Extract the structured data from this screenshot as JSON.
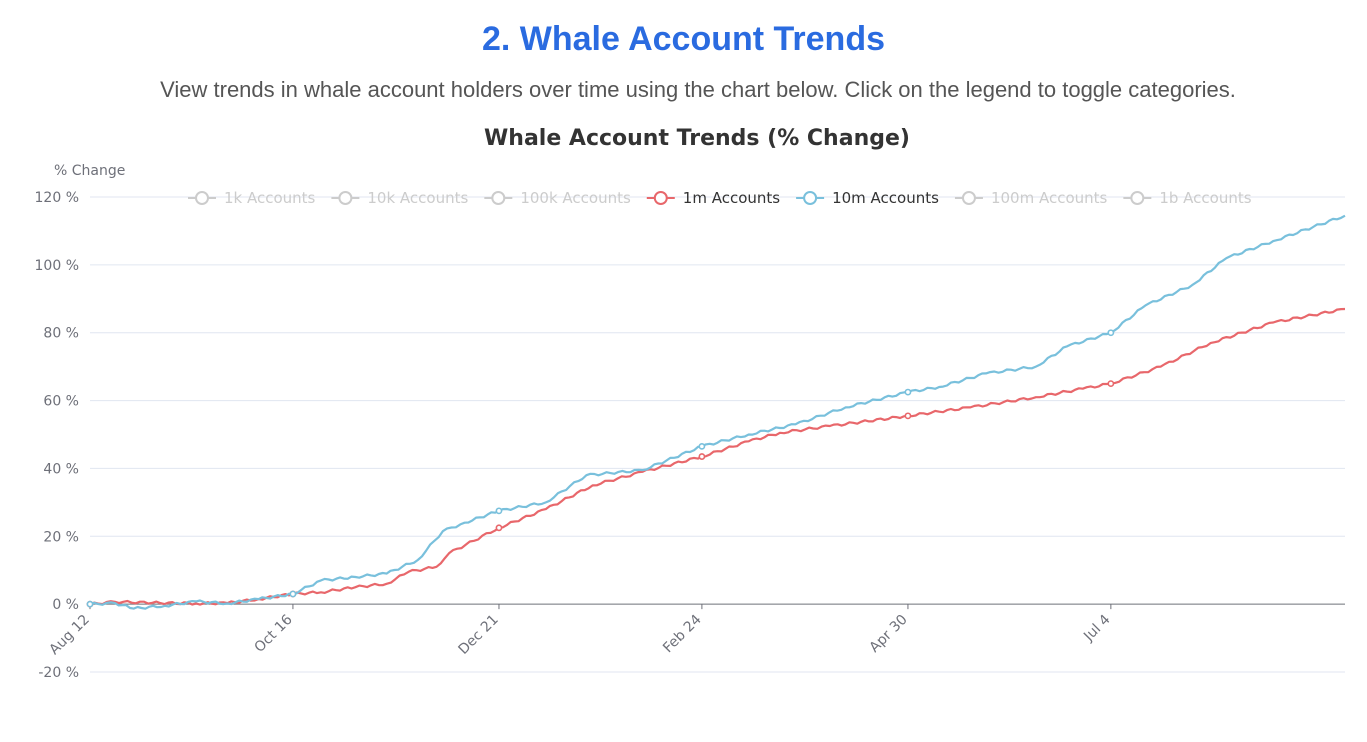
{
  "header": {
    "title": "2. Whale Account Trends",
    "description": "View trends in whale account holders over time using the chart below. Click on the legend to toggle categories."
  },
  "colors": {
    "title": "#2a6be0",
    "series_1m": "#e8676b",
    "series_10m": "#79c0dc",
    "legend_inactive": "#cccccc",
    "grid": "#e0e6f1",
    "axis": "#6e7079"
  },
  "chart_data": {
    "type": "line",
    "title": "Whale Account Trends (% Change)",
    "ylabel": "% Change",
    "ylim": [
      -20,
      120
    ],
    "y_ticks": [
      -20,
      0,
      20,
      40,
      60,
      80,
      100,
      120
    ],
    "y_tick_labels": [
      "-20 %",
      "0 %",
      "20 %",
      "40 %",
      "60 %",
      "80 %",
      "100 %",
      "120 %"
    ],
    "x_tick_labels": [
      "Aug 12",
      "Oct 16",
      "Dec 21",
      "Feb 24",
      "Apr 30",
      "Jul 4"
    ],
    "x_tick_dates": [
      "2023-08-12",
      "2023-10-16",
      "2023-12-21",
      "2024-02-24",
      "2024-04-30",
      "2024-07-04"
    ],
    "x_range": [
      "2023-08-12",
      "2024-09-17"
    ],
    "grid": true,
    "legend_position": "top",
    "legend": [
      {
        "name": "1k Accounts",
        "active": false
      },
      {
        "name": "10k Accounts",
        "active": false
      },
      {
        "name": "100k Accounts",
        "active": false
      },
      {
        "name": "1m Accounts",
        "active": true
      },
      {
        "name": "10m Accounts",
        "active": true
      },
      {
        "name": "100m Accounts",
        "active": false
      },
      {
        "name": "1b Accounts",
        "active": false
      }
    ],
    "series": [
      {
        "name": "1m Accounts",
        "color": "#e8676b",
        "markers": [
          "2023-08-12",
          "2023-10-16",
          "2023-12-21",
          "2024-02-24",
          "2024-04-30",
          "2024-07-04"
        ],
        "points": [
          [
            "2023-08-12",
            0
          ],
          [
            "2023-08-20",
            0.7
          ],
          [
            "2023-09-01",
            0.4
          ],
          [
            "2023-09-15",
            0.2
          ],
          [
            "2023-09-25",
            0.3
          ],
          [
            "2023-10-05",
            1.5
          ],
          [
            "2023-10-16",
            3
          ],
          [
            "2023-10-25",
            3.5
          ],
          [
            "2023-11-05",
            5
          ],
          [
            "2023-11-15",
            6
          ],
          [
            "2023-11-22",
            9.5
          ],
          [
            "2023-12-01",
            11
          ],
          [
            "2023-12-05",
            15
          ],
          [
            "2023-12-21",
            22.5
          ],
          [
            "2024-01-05",
            28
          ],
          [
            "2024-01-20",
            35
          ],
          [
            "2024-02-05",
            39
          ],
          [
            "2024-02-24",
            43.5
          ],
          [
            "2024-03-10",
            48
          ],
          [
            "2024-03-20",
            50.5
          ],
          [
            "2024-04-05",
            52.5
          ],
          [
            "2024-04-30",
            55.5
          ],
          [
            "2024-05-20",
            58
          ],
          [
            "2024-06-10",
            61
          ],
          [
            "2024-06-25",
            63.5
          ],
          [
            "2024-07-04",
            65
          ],
          [
            "2024-07-20",
            70
          ],
          [
            "2024-08-05",
            77
          ],
          [
            "2024-08-25",
            83
          ],
          [
            "2024-09-17",
            87
          ]
        ]
      },
      {
        "name": "10m Accounts",
        "color": "#79c0dc",
        "markers": [
          "2023-08-12",
          "2023-10-16",
          "2023-12-21",
          "2024-02-24",
          "2024-04-30",
          "2024-07-04"
        ],
        "points": [
          [
            "2023-08-12",
            0
          ],
          [
            "2023-08-20",
            0.3
          ],
          [
            "2023-08-26",
            -1.3
          ],
          [
            "2023-09-05",
            -0.5
          ],
          [
            "2023-09-15",
            0.8
          ],
          [
            "2023-09-25",
            0.2
          ],
          [
            "2023-10-05",
            1.5
          ],
          [
            "2023-10-16",
            3
          ],
          [
            "2023-10-25",
            7
          ],
          [
            "2023-11-05",
            8
          ],
          [
            "2023-11-15",
            9
          ],
          [
            "2023-11-25",
            13
          ],
          [
            "2023-12-03",
            21.5
          ],
          [
            "2023-12-10",
            24
          ],
          [
            "2023-12-21",
            27.5
          ],
          [
            "2024-01-05",
            30
          ],
          [
            "2024-01-18",
            38
          ],
          [
            "2024-02-05",
            39.5
          ],
          [
            "2024-02-24",
            46.5
          ],
          [
            "2024-03-10",
            50
          ],
          [
            "2024-03-25",
            53
          ],
          [
            "2024-04-10",
            58
          ],
          [
            "2024-04-30",
            62.5
          ],
          [
            "2024-05-10",
            64
          ],
          [
            "2024-05-25",
            68
          ],
          [
            "2024-06-10",
            70
          ],
          [
            "2024-06-20",
            76
          ],
          [
            "2024-07-04",
            80
          ],
          [
            "2024-07-15",
            88
          ],
          [
            "2024-07-30",
            94
          ],
          [
            "2024-08-10",
            102
          ],
          [
            "2024-08-25",
            107
          ],
          [
            "2024-09-17",
            114.5
          ]
        ]
      }
    ]
  }
}
